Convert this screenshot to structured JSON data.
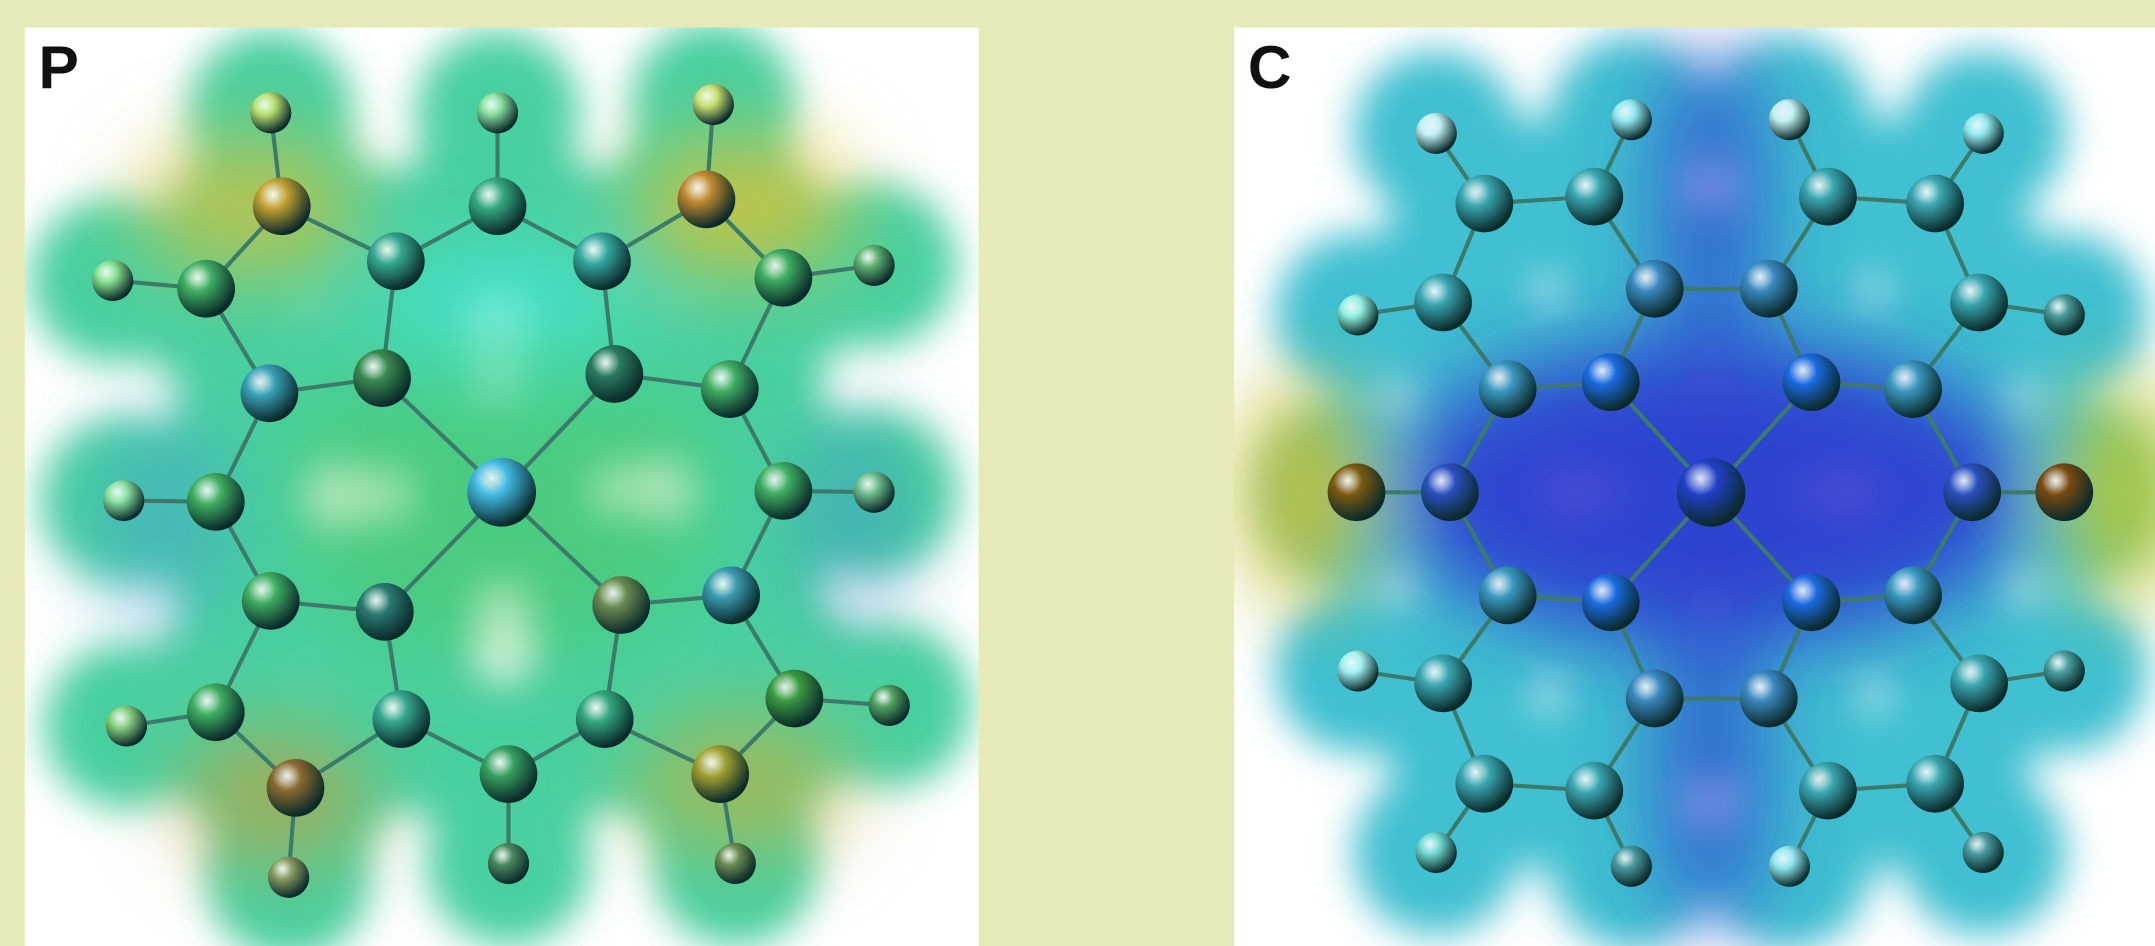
{
  "panels": [
    {
      "label": "P"
    },
    {
      "label": "C"
    }
  ]
}
